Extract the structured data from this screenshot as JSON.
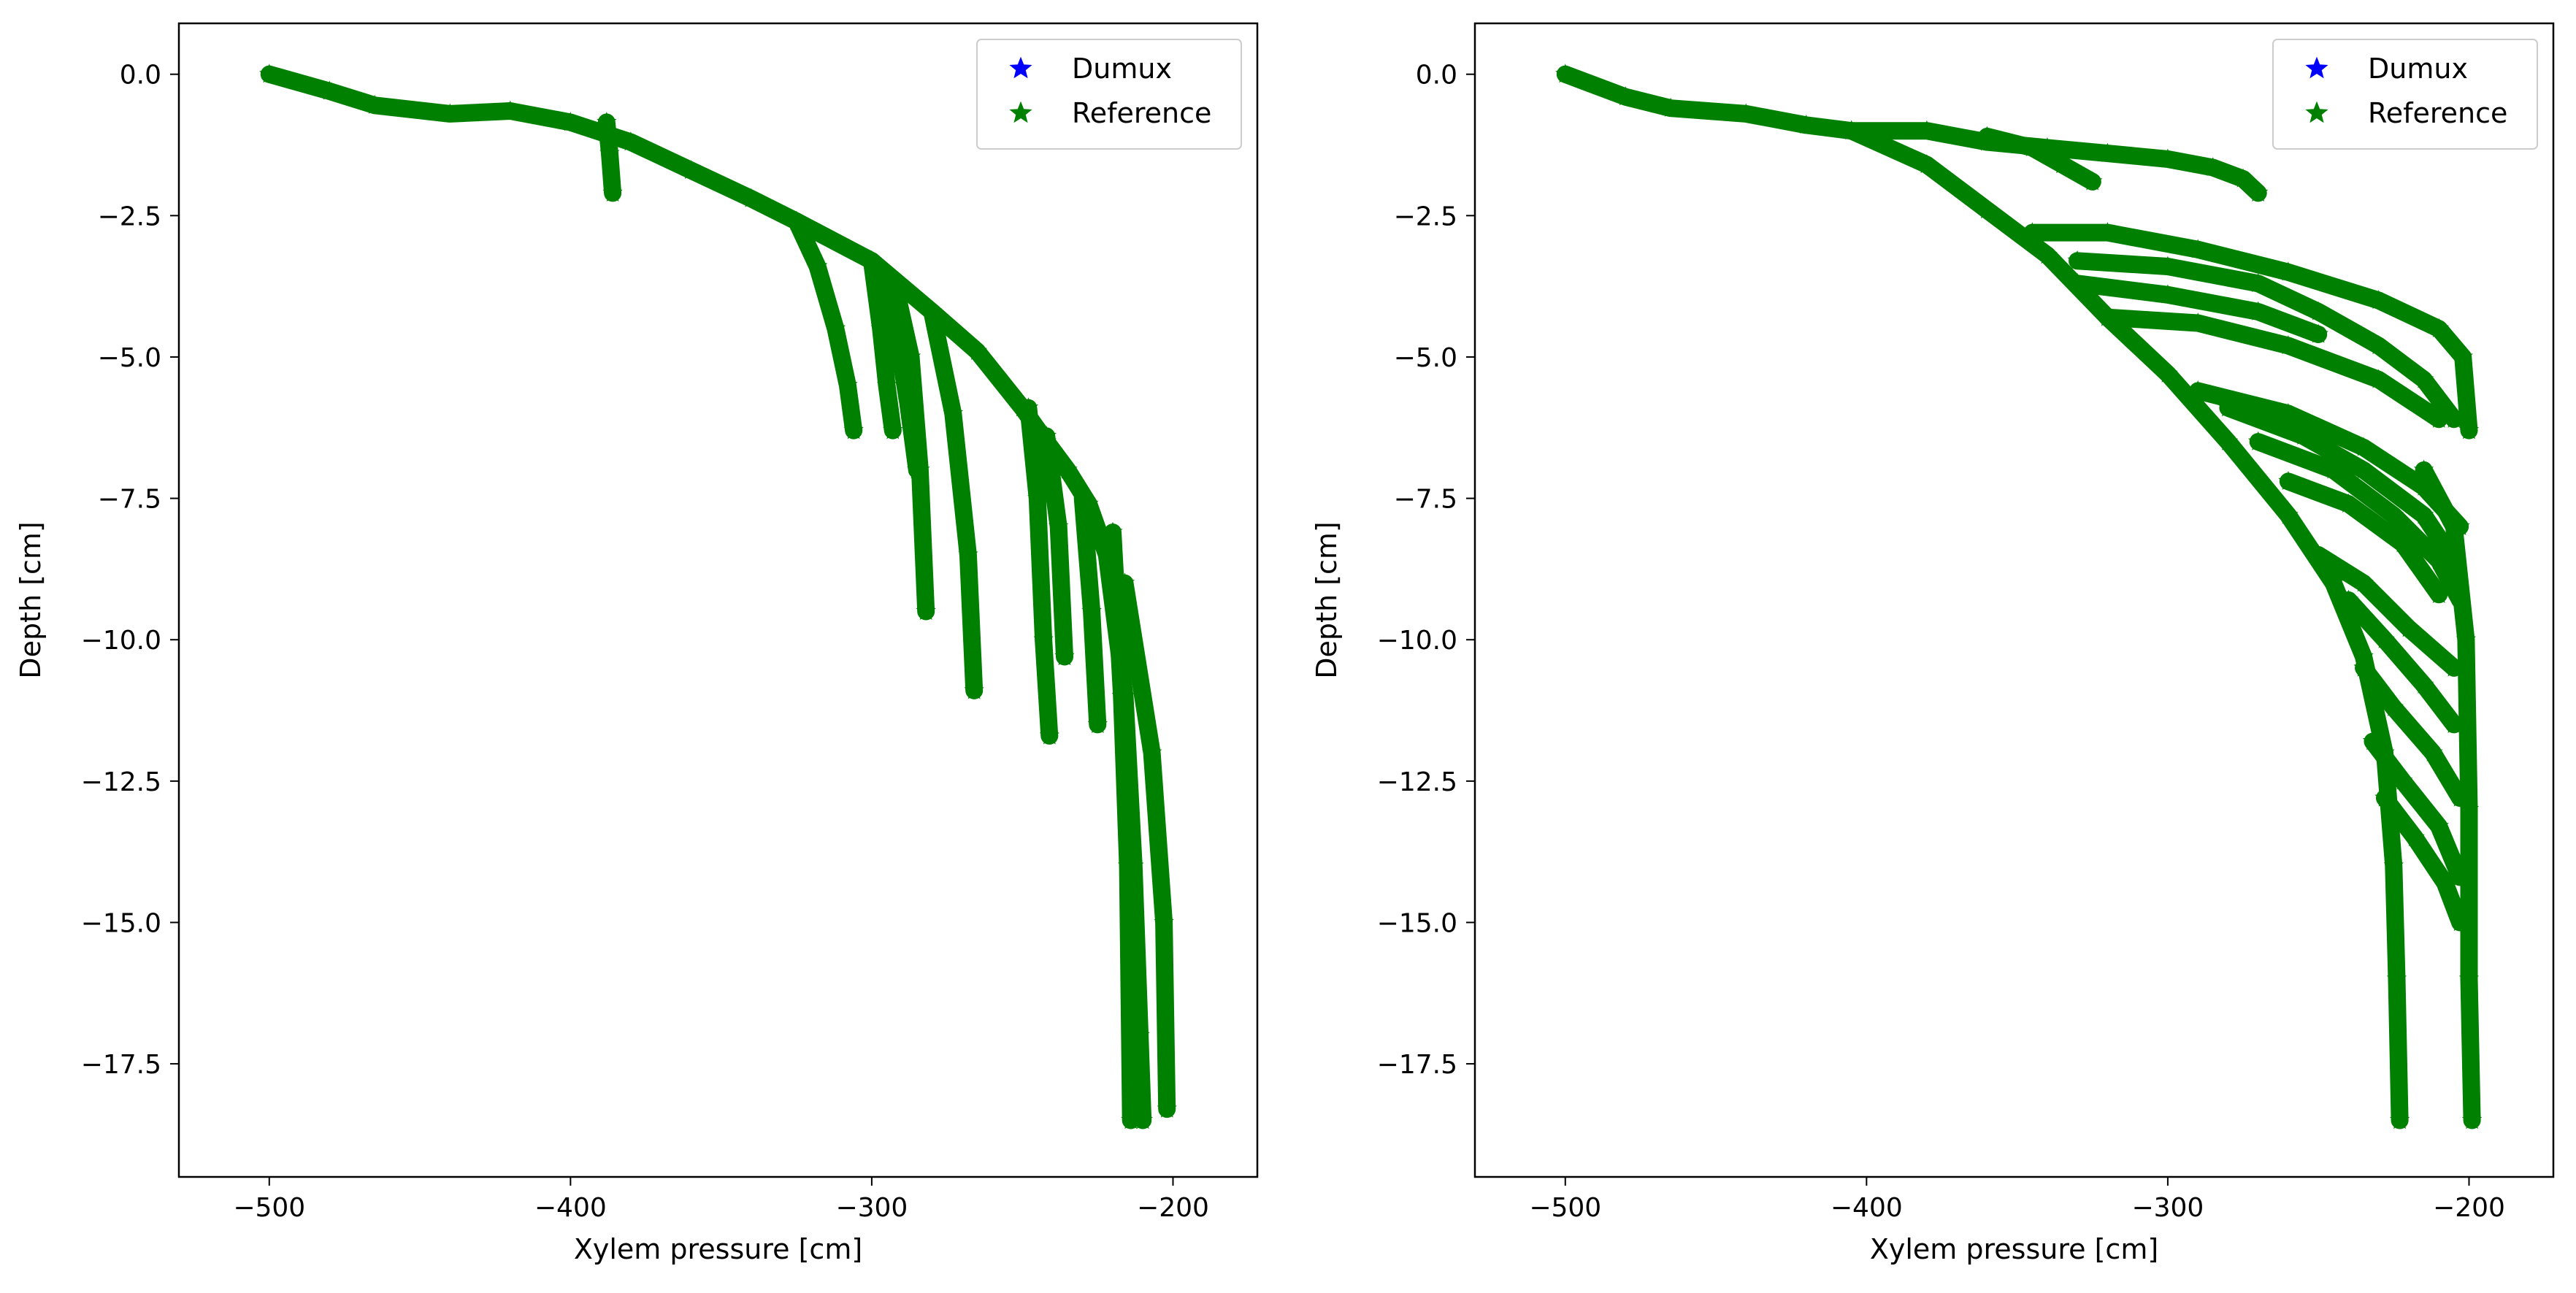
{
  "chart_data": [
    {
      "type": "scatter",
      "xlabel": "Xylem pressure [cm]",
      "ylabel": "Depth [cm]",
      "xlim": [
        -530,
        -172
      ],
      "ylim": [
        -19.5,
        0.9
      ],
      "xticks": [
        -500,
        -400,
        -300,
        -200
      ],
      "yticks": [
        0.0,
        -2.5,
        -5.0,
        -7.5,
        -10.0,
        -12.5,
        -15.0,
        -17.5
      ],
      "xtick_labels": [
        "−500",
        "−400",
        "−300",
        "−200"
      ],
      "ytick_labels": [
        "0.0",
        "−2.5",
        "−5.0",
        "−7.5",
        "−10.0",
        "−12.5",
        "−15.0",
        "−17.5"
      ],
      "legend": {
        "position": "top-right",
        "entries": [
          {
            "label": "Dumux",
            "color": "#0000ff",
            "marker": "star"
          },
          {
            "label": "Reference",
            "color": "#008000",
            "marker": "star"
          }
        ]
      },
      "series": [
        {
          "name": "Reference",
          "color": "#008000",
          "branches": [
            [
              [
                -500,
                0.0
              ],
              [
                -480,
                -0.3
              ],
              [
                -465,
                -0.55
              ],
              [
                -440,
                -0.7
              ],
              [
                -420,
                -0.65
              ],
              [
                -400,
                -0.85
              ],
              [
                -380,
                -1.2
              ],
              [
                -360,
                -1.7
              ],
              [
                -340,
                -2.2
              ],
              [
                -325,
                -2.6
              ],
              [
                -300,
                -3.3
              ],
              [
                -280,
                -4.2
              ],
              [
                -265,
                -4.9
              ],
              [
                -250,
                -5.9
              ],
              [
                -242,
                -6.5
              ],
              [
                -235,
                -7.0
              ],
              [
                -228,
                -7.6
              ],
              [
                -222,
                -8.5
              ],
              [
                -216,
                -11.0
              ],
              [
                -213,
                -14.0
              ],
              [
                -211,
                -17.0
              ],
              [
                -210,
                -18.5
              ]
            ],
            [
              [
                -388,
                -0.85
              ],
              [
                -387,
                -1.4
              ],
              [
                -386,
                -2.1
              ]
            ],
            [
              [
                -325,
                -2.6
              ],
              [
                -318,
                -3.4
              ],
              [
                -312,
                -4.5
              ],
              [
                -308,
                -5.5
              ],
              [
                -306,
                -6.3
              ]
            ],
            [
              [
                -300,
                -3.3
              ],
              [
                -297,
                -4.5
              ],
              [
                -295,
                -5.5
              ],
              [
                -293,
                -6.3
              ]
            ],
            [
              [
                -297,
                -3.5
              ],
              [
                -292,
                -4.5
              ],
              [
                -288,
                -5.8
              ],
              [
                -285,
                -7.0
              ]
            ],
            [
              [
                -292,
                -3.8
              ],
              [
                -287,
                -5.0
              ],
              [
                -284,
                -7.0
              ],
              [
                -282,
                -9.5
              ]
            ],
            [
              [
                -280,
                -4.2
              ],
              [
                -273,
                -6.0
              ],
              [
                -268,
                -8.5
              ],
              [
                -266,
                -10.9
              ]
            ],
            [
              [
                -248,
                -5.9
              ],
              [
                -245,
                -7.5
              ],
              [
                -243,
                -10.0
              ],
              [
                -241,
                -11.7
              ]
            ],
            [
              [
                -242,
                -6.4
              ],
              [
                -238,
                -8.0
              ],
              [
                -236,
                -10.3
              ]
            ],
            [
              [
                -230,
                -7.5
              ],
              [
                -227,
                -9.5
              ],
              [
                -225,
                -11.5
              ]
            ],
            [
              [
                -220,
                -8.1
              ],
              [
                -217,
                -11.0
              ],
              [
                -215,
                -14.0
              ],
              [
                -214,
                -18.5
              ]
            ],
            [
              [
                -216,
                -9.0
              ],
              [
                -207,
                -12.0
              ],
              [
                -203,
                -15.0
              ],
              [
                -202,
                -18.3
              ]
            ]
          ]
        },
        {
          "name": "Dumux",
          "color": "#0000ff",
          "branches": []
        }
      ]
    },
    {
      "type": "scatter",
      "xlabel": "Xylem pressure [cm]",
      "ylabel": "Depth [cm]",
      "xlim": [
        -530,
        -172
      ],
      "ylim": [
        -19.5,
        0.9
      ],
      "xticks": [
        -500,
        -400,
        -300,
        -200
      ],
      "yticks": [
        0.0,
        -2.5,
        -5.0,
        -7.5,
        -10.0,
        -12.5,
        -15.0,
        -17.5
      ],
      "xtick_labels": [
        "−500",
        "−400",
        "−300",
        "−200"
      ],
      "ytick_labels": [
        "0.0",
        "−2.5",
        "−5.0",
        "−7.5",
        "−10.0",
        "−12.5",
        "−15.0",
        "−17.5"
      ],
      "legend": {
        "position": "top-right",
        "entries": [
          {
            "label": "Dumux",
            "color": "#0000ff",
            "marker": "star"
          },
          {
            "label": "Reference",
            "color": "#008000",
            "marker": "star"
          }
        ]
      },
      "series": [
        {
          "name": "Reference",
          "color": "#008000",
          "branches": [
            [
              [
                -500,
                0.0
              ],
              [
                -480,
                -0.4
              ],
              [
                -465,
                -0.6
              ],
              [
                -440,
                -0.7
              ],
              [
                -420,
                -0.9
              ],
              [
                -405,
                -1.0
              ]
            ],
            [
              [
                -405,
                -1.0
              ],
              [
                -380,
                -1.6
              ],
              [
                -360,
                -2.4
              ],
              [
                -340,
                -3.2
              ],
              [
                -320,
                -4.3
              ],
              [
                -300,
                -5.3
              ],
              [
                -280,
                -6.5
              ],
              [
                -260,
                -7.8
              ],
              [
                -245,
                -9.0
              ],
              [
                -235,
                -10.3
              ],
              [
                -228,
                -12.0
              ],
              [
                -225,
                -14.0
              ],
              [
                -224,
                -16.0
              ],
              [
                -223,
                -18.5
              ]
            ],
            [
              [
                -405,
                -1.0
              ],
              [
                -380,
                -1.0
              ],
              [
                -360,
                -1.2
              ],
              [
                -340,
                -1.3
              ],
              [
                -320,
                -1.4
              ],
              [
                -300,
                -1.5
              ],
              [
                -285,
                -1.65
              ],
              [
                -275,
                -1.85
              ],
              [
                -270,
                -2.1
              ]
            ],
            [
              [
                -360,
                -1.1
              ],
              [
                -345,
                -1.3
              ],
              [
                -335,
                -1.6
              ],
              [
                -325,
                -1.9
              ]
            ],
            [
              [
                -345,
                -2.8
              ],
              [
                -320,
                -2.8
              ],
              [
                -290,
                -3.1
              ],
              [
                -260,
                -3.5
              ],
              [
                -230,
                -4.0
              ],
              [
                -210,
                -4.5
              ],
              [
                -202,
                -5.0
              ],
              [
                -200,
                -6.3
              ]
            ],
            [
              [
                -330,
                -3.3
              ],
              [
                -300,
                -3.4
              ],
              [
                -270,
                -3.7
              ],
              [
                -250,
                -4.2
              ],
              [
                -230,
                -4.8
              ],
              [
                -215,
                -5.4
              ],
              [
                -205,
                -6.1
              ]
            ],
            [
              [
                -330,
                -3.7
              ],
              [
                -300,
                -3.9
              ],
              [
                -270,
                -4.2
              ],
              [
                -250,
                -4.6
              ]
            ],
            [
              [
                -320,
                -4.3
              ],
              [
                -290,
                -4.4
              ],
              [
                -260,
                -4.8
              ],
              [
                -230,
                -5.4
              ],
              [
                -210,
                -6.1
              ]
            ],
            [
              [
                -290,
                -5.6
              ],
              [
                -260,
                -6.0
              ],
              [
                -235,
                -6.6
              ],
              [
                -215,
                -7.3
              ],
              [
                -203,
                -8.0
              ]
            ],
            [
              [
                -280,
                -5.9
              ],
              [
                -255,
                -6.4
              ],
              [
                -235,
                -7.0
              ],
              [
                -215,
                -7.8
              ],
              [
                -205,
                -8.6
              ]
            ],
            [
              [
                -270,
                -6.5
              ],
              [
                -245,
                -7.0
              ],
              [
                -225,
                -7.8
              ],
              [
                -210,
                -8.6
              ],
              [
                -203,
                -9.3
              ]
            ],
            [
              [
                -260,
                -7.2
              ],
              [
                -240,
                -7.6
              ],
              [
                -222,
                -8.3
              ],
              [
                -210,
                -9.2
              ]
            ],
            [
              [
                -250,
                -8.5
              ],
              [
                -235,
                -9.0
              ],
              [
                -220,
                -9.8
              ],
              [
                -205,
                -10.5
              ]
            ],
            [
              [
                -240,
                -9.3
              ],
              [
                -228,
                -10.0
              ],
              [
                -215,
                -10.8
              ],
              [
                -205,
                -11.5
              ]
            ],
            [
              [
                -235,
                -10.5
              ],
              [
                -225,
                -11.2
              ],
              [
                -212,
                -12.0
              ],
              [
                -203,
                -12.8
              ]
            ],
            [
              [
                -232,
                -11.8
              ],
              [
                -222,
                -12.5
              ],
              [
                -210,
                -13.3
              ],
              [
                -203,
                -14.2
              ]
            ],
            [
              [
                -228,
                -12.8
              ],
              [
                -218,
                -13.5
              ],
              [
                -208,
                -14.3
              ],
              [
                -203,
                -15.0
              ]
            ],
            [
              [
                -215,
                -7.0
              ],
              [
                -205,
                -8.0
              ],
              [
                -201,
                -10.0
              ],
              [
                -200,
                -13.0
              ],
              [
                -200,
                -16.0
              ],
              [
                -199,
                -18.5
              ]
            ]
          ]
        },
        {
          "name": "Dumux",
          "color": "#0000ff",
          "branches": []
        }
      ]
    }
  ]
}
